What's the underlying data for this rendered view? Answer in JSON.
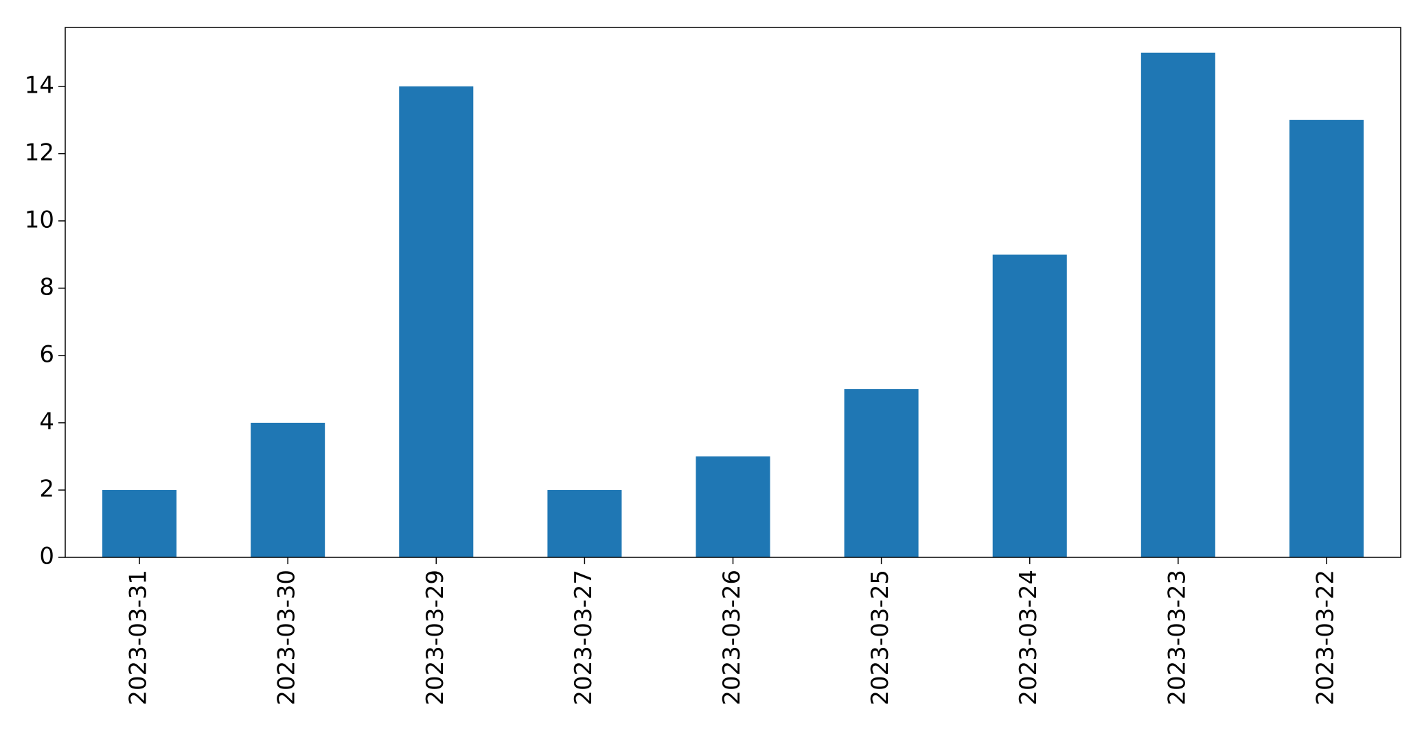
{
  "chart_data": {
    "type": "bar",
    "title": "",
    "xlabel": "",
    "ylabel": "",
    "categories": [
      "2023-03-31",
      "2023-03-30",
      "2023-03-29",
      "2023-03-27",
      "2023-03-26",
      "2023-03-25",
      "2023-03-24",
      "2023-03-23",
      "2023-03-22"
    ],
    "values": [
      2,
      4,
      14,
      2,
      3,
      5,
      9,
      15,
      13
    ],
    "ylim": [
      0,
      15.75
    ],
    "yticks": [
      "0",
      "2",
      "4",
      "6",
      "8",
      "10",
      "12",
      "14"
    ],
    "grid": false,
    "legend": false,
    "bar_color": "#1f77b4"
  }
}
